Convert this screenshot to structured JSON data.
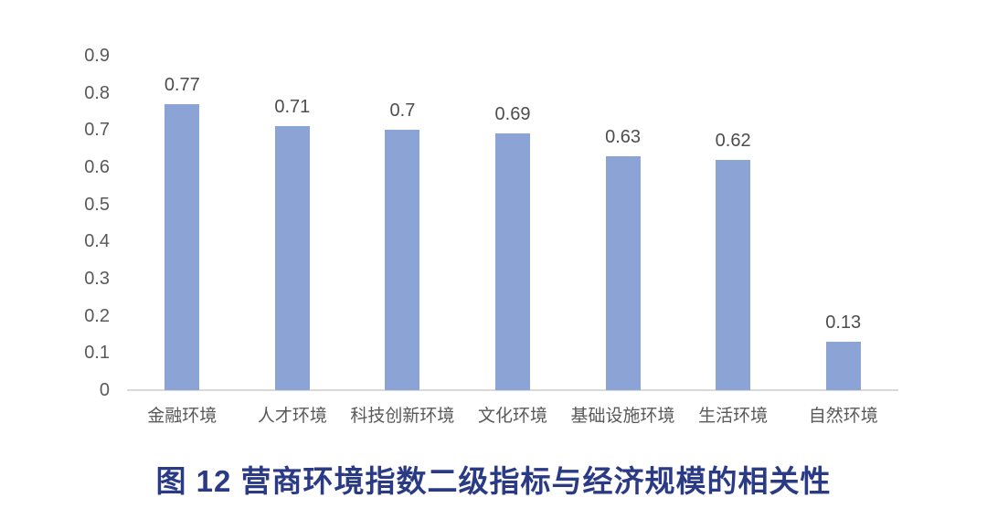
{
  "chart_data": {
    "type": "bar",
    "categories": [
      "金融环境",
      "人才环境",
      "科技创新环境",
      "文化环境",
      "基础设施环境",
      "生活环境",
      "自然环境"
    ],
    "values": [
      0.77,
      0.71,
      0.7,
      0.69,
      0.63,
      0.62,
      0.13
    ],
    "value_labels": [
      "0.77",
      "0.71",
      "0.7",
      "0.69",
      "0.63",
      "0.62",
      "0.13"
    ],
    "title": "图 12 营商环境指数二级指标与经济规模的相关性",
    "xlabel": "",
    "ylabel": "",
    "ylim": [
      0,
      0.9
    ],
    "ytick_labels": [
      "0.9",
      "0.8",
      "0.7",
      "0.6",
      "0.5",
      "0.4",
      "0.3",
      "0.2",
      "0.1",
      "0"
    ],
    "grid": false,
    "legend": false,
    "colors": {
      "bar": "#8ba3d5",
      "value_label": "#4d4d4d",
      "axis_tick": "#595959",
      "axis_line": "#d9d9d9",
      "title": "#2b3a85",
      "background": "#ffffff"
    }
  }
}
